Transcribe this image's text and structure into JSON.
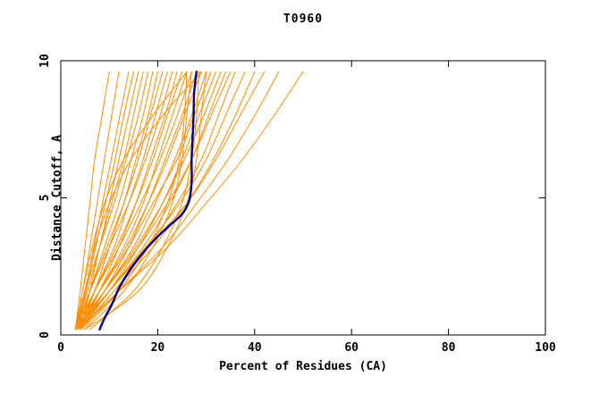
{
  "chart_data": {
    "type": "line",
    "title": "T0960",
    "xlabel": "Percent of Residues (CA)",
    "ylabel": "Distance Cutoff, A",
    "xlim": [
      0,
      100
    ],
    "ylim": [
      0,
      10
    ],
    "x_ticks": [
      0,
      20,
      40,
      60,
      80,
      100
    ],
    "y_ticks": [
      0,
      5,
      10
    ],
    "grid": false,
    "legend": "none",
    "colors": {
      "models": "#ff8c00",
      "highlight": "#00008b",
      "axis": "#000000",
      "background": "#ffffff"
    },
    "y_levels": [
      0.2,
      1.6,
      3.2,
      4.8,
      6.4,
      8.0,
      9.6
    ],
    "model_curves": [
      [
        3,
        4,
        5,
        6,
        7,
        8.5,
        10
      ],
      [
        3,
        4.5,
        6,
        7.5,
        9,
        10.5,
        12
      ],
      [
        3.2,
        5,
        6.8,
        8.6,
        10.4,
        12.2,
        14
      ],
      [
        3.5,
        5.2,
        7.2,
        9.2,
        11.2,
        13,
        15
      ],
      [
        3,
        5.5,
        8,
        10,
        12,
        14,
        16
      ],
      [
        4,
        6,
        8,
        10.5,
        13,
        15,
        17
      ],
      [
        3,
        5,
        8,
        11,
        13.5,
        16,
        18
      ],
      [
        3.5,
        6,
        9,
        12,
        14.5,
        17,
        19
      ],
      [
        4,
        7,
        10,
        13,
        15.5,
        18,
        20
      ],
      [
        3,
        6,
        9.5,
        13,
        16,
        18.5,
        21
      ],
      [
        4,
        7,
        11,
        14,
        17,
        19.5,
        22
      ],
      [
        3,
        6,
        10,
        14,
        17.5,
        20.5,
        23
      ],
      [
        4,
        8,
        12,
        15.5,
        18.5,
        21.5,
        24
      ],
      [
        3.5,
        7,
        11.5,
        15.5,
        19,
        22,
        25
      ],
      [
        4,
        8,
        13,
        17,
        20,
        23,
        26
      ],
      [
        3,
        7,
        12,
        16.5,
        20.5,
        24,
        27
      ],
      [
        4,
        9,
        14,
        18,
        21.5,
        25,
        28
      ],
      [
        3.5,
        8,
        13.5,
        18,
        22,
        25.5,
        29
      ],
      [
        4,
        9,
        15,
        19.5,
        23.5,
        27,
        30
      ],
      [
        3,
        8,
        14,
        19,
        24,
        27.5,
        31
      ],
      [
        4,
        10,
        16,
        21,
        25,
        28.5,
        32
      ],
      [
        3.5,
        9,
        15.5,
        21,
        25.5,
        29.5,
        33
      ],
      [
        4,
        10,
        17,
        22.5,
        27,
        30.5,
        34
      ],
      [
        3,
        9,
        16,
        22,
        27,
        31,
        35
      ],
      [
        4,
        11,
        18,
        24,
        29,
        32.5,
        36
      ],
      [
        3.5,
        10,
        17.5,
        24.5,
        30,
        34,
        38
      ],
      [
        4,
        11,
        19,
        26,
        31.5,
        36,
        40
      ],
      [
        3,
        10,
        18,
        26,
        32,
        37,
        42
      ],
      [
        4,
        12,
        21,
        28,
        34.5,
        40,
        45
      ],
      [
        3.5,
        12,
        22,
        30,
        37.5,
        44,
        50
      ],
      [
        5,
        13,
        19,
        23,
        25,
        26,
        27
      ],
      [
        6,
        15,
        21,
        25,
        27,
        28,
        28.5
      ],
      [
        5,
        16,
        22,
        26,
        28,
        29,
        30
      ],
      [
        4.5,
        12,
        18,
        22,
        24.5,
        25.5,
        26
      ],
      [
        3,
        4.5,
        6.5,
        9,
        13,
        19,
        26
      ],
      [
        3,
        5,
        7,
        10,
        14.5,
        21,
        29
      ]
    ],
    "highlight_curve": {
      "name": "selected-model",
      "points": [
        [
          8,
          0.2
        ],
        [
          9,
          0.6
        ],
        [
          10.5,
          1.1
        ],
        [
          12,
          1.7
        ],
        [
          14,
          2.3
        ],
        [
          16.5,
          2.9
        ],
        [
          19.5,
          3.5
        ],
        [
          22.5,
          4.0
        ],
        [
          25,
          4.4
        ],
        [
          26.5,
          4.9
        ],
        [
          27,
          5.6
        ],
        [
          27,
          6.4
        ],
        [
          27.2,
          7.2
        ],
        [
          27.4,
          8.0
        ],
        [
          27.5,
          8.8
        ],
        [
          28,
          9.6
        ]
      ]
    }
  }
}
